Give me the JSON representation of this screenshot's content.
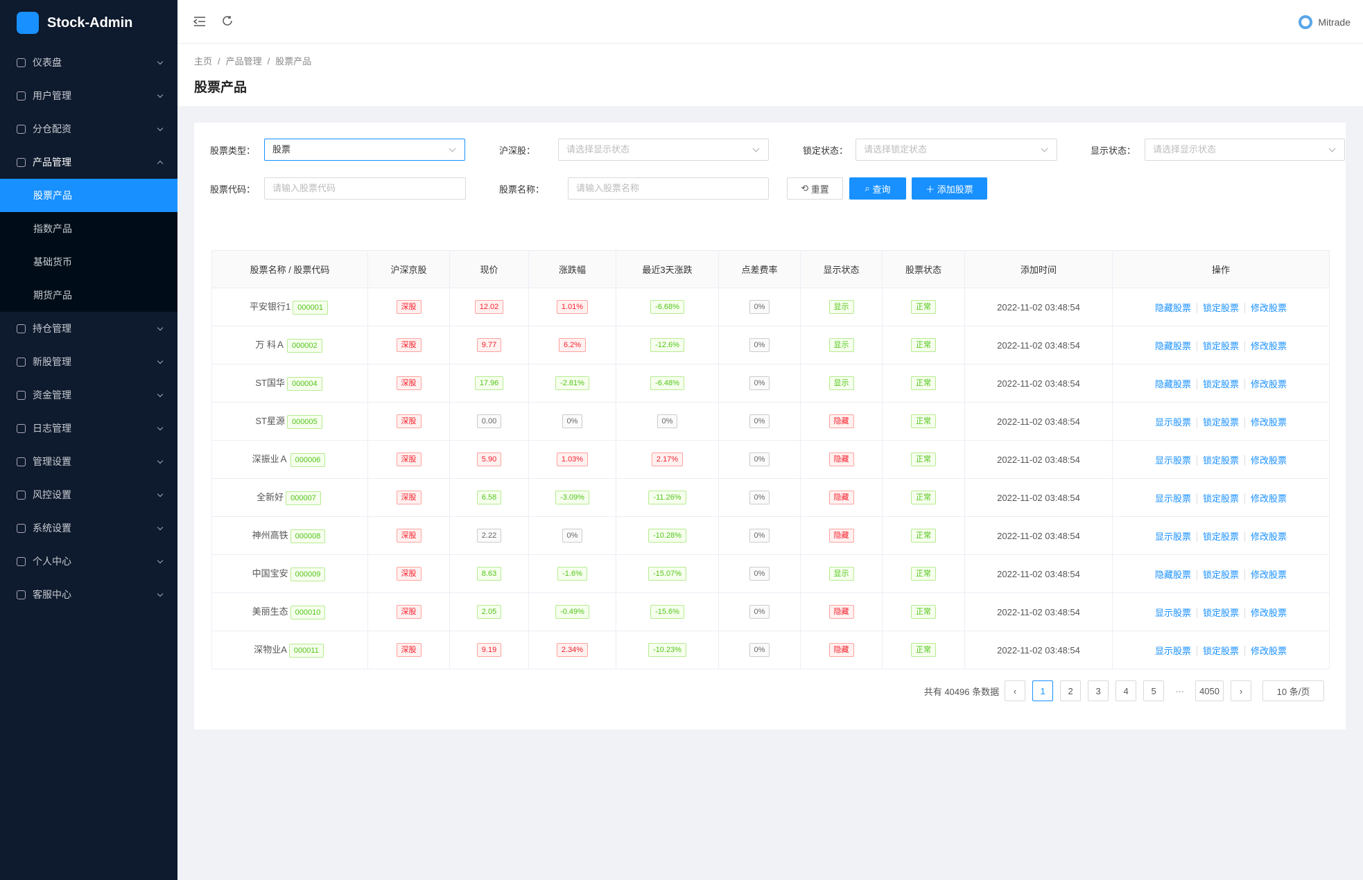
{
  "brand": "Stock-Admin",
  "user": "Mitrade",
  "menu": [
    {
      "label": "仪表盘"
    },
    {
      "label": "用户管理"
    },
    {
      "label": "分仓配资"
    },
    {
      "label": "产品管理",
      "open": true,
      "children": [
        {
          "label": "股票产品",
          "active": true
        },
        {
          "label": "指数产品"
        },
        {
          "label": "基础货币"
        },
        {
          "label": "期货产品"
        }
      ]
    },
    {
      "label": "持仓管理"
    },
    {
      "label": "新股管理"
    },
    {
      "label": "资金管理"
    },
    {
      "label": "日志管理"
    },
    {
      "label": "管理设置"
    },
    {
      "label": "风控设置"
    },
    {
      "label": "系统设置"
    },
    {
      "label": "个人中心"
    },
    {
      "label": "客服中心"
    }
  ],
  "breadcrumb": {
    "items": [
      "主页",
      "产品管理",
      "股票产品"
    ],
    "separator": "/"
  },
  "page_title": "股票产品",
  "filters": [
    {
      "label": "股票类型：",
      "value": "股票",
      "select": true
    },
    {
      "label": "沪深股：",
      "placeholder": "请选择显示状态",
      "select": true
    },
    {
      "label": "锁定状态：",
      "placeholder": "请选择锁定状态",
      "select": true
    },
    {
      "label": "显示状态：",
      "placeholder": "请选择显示状态",
      "select": true
    },
    {
      "label": "股票代码：",
      "placeholder": "请输入股票代码"
    },
    {
      "label": "股票名称：",
      "placeholder": "请输入股票名称"
    }
  ],
  "buttons": {
    "reset": "重置",
    "query": "查询",
    "add": "添加股票"
  },
  "table": {
    "columns": [
      "股票名称 / 股票代码",
      "沪深京股",
      "现价",
      "涨跌幅",
      "最近3天涨跌",
      "点差费率",
      "显示状态",
      "股票状态",
      "添加时间",
      "操作"
    ],
    "rows": [
      {
        "name": "平安银行1",
        "code": "000001",
        "market": "深股",
        "price": "12.02",
        "price_color": "red",
        "change": "1.01%",
        "change_color": "red",
        "change3": "-6.68%",
        "change3_color": "green",
        "spread": "0%",
        "display": "显示",
        "display_color": "green",
        "status": "正常",
        "time": "2022-11-02 03:48:54",
        "actions": [
          "隐藏股票",
          "锁定股票",
          "修改股票"
        ]
      },
      {
        "name": "万 科Ａ",
        "code": "000002",
        "market": "深股",
        "price": "9.77",
        "price_color": "red",
        "change": "6.2%",
        "change_color": "red",
        "change3": "-12.6%",
        "change3_color": "green",
        "spread": "0%",
        "display": "显示",
        "display_color": "green",
        "status": "正常",
        "time": "2022-11-02 03:48:54",
        "actions": [
          "隐藏股票",
          "锁定股票",
          "修改股票"
        ]
      },
      {
        "name": "ST国华",
        "code": "000004",
        "market": "深股",
        "price": "17.96",
        "price_color": "green",
        "change": "-2.81%",
        "change_color": "green",
        "change3": "-6.48%",
        "change3_color": "green",
        "spread": "0%",
        "display": "显示",
        "display_color": "green",
        "status": "正常",
        "time": "2022-11-02 03:48:54",
        "actions": [
          "隐藏股票",
          "锁定股票",
          "修改股票"
        ]
      },
      {
        "name": "ST星源",
        "code": "000005",
        "market": "深股",
        "price": "0.00",
        "price_color": "gray",
        "change": "0%",
        "change_color": "gray",
        "change3": "0%",
        "change3_color": "gray",
        "spread": "0%",
        "display": "隐藏",
        "display_color": "red",
        "status": "正常",
        "time": "2022-11-02 03:48:54",
        "actions": [
          "显示股票",
          "锁定股票",
          "修改股票"
        ]
      },
      {
        "name": "深振业Ａ",
        "code": "000006",
        "market": "深股",
        "price": "5.90",
        "price_color": "red",
        "change": "1.03%",
        "change_color": "red",
        "change3": "2.17%",
        "change3_color": "red",
        "spread": "0%",
        "display": "隐藏",
        "display_color": "red",
        "status": "正常",
        "time": "2022-11-02 03:48:54",
        "actions": [
          "显示股票",
          "锁定股票",
          "修改股票"
        ]
      },
      {
        "name": "全新好",
        "code": "000007",
        "market": "深股",
        "price": "6.58",
        "price_color": "green",
        "change": "-3.09%",
        "change_color": "green",
        "change3": "-11.26%",
        "change3_color": "green",
        "spread": "0%",
        "display": "隐藏",
        "display_color": "red",
        "status": "正常",
        "time": "2022-11-02 03:48:54",
        "actions": [
          "显示股票",
          "锁定股票",
          "修改股票"
        ]
      },
      {
        "name": "神州高铁",
        "code": "000008",
        "market": "深股",
        "price": "2.22",
        "price_color": "gray",
        "change": "0%",
        "change_color": "gray",
        "change3": "-10.28%",
        "change3_color": "green",
        "spread": "0%",
        "display": "隐藏",
        "display_color": "red",
        "status": "正常",
        "time": "2022-11-02 03:48:54",
        "actions": [
          "显示股票",
          "锁定股票",
          "修改股票"
        ]
      },
      {
        "name": "中国宝安",
        "code": "000009",
        "market": "深股",
        "price": "8.63",
        "price_color": "green",
        "change": "-1.6%",
        "change_color": "green",
        "change3": "-15.07%",
        "change3_color": "green",
        "spread": "0%",
        "display": "显示",
        "display_color": "green",
        "status": "正常",
        "time": "2022-11-02 03:48:54",
        "actions": [
          "隐藏股票",
          "锁定股票",
          "修改股票"
        ]
      },
      {
        "name": "美丽生态",
        "code": "000010",
        "market": "深股",
        "price": "2.05",
        "price_color": "green",
        "change": "-0.49%",
        "change_color": "green",
        "change3": "-15.6%",
        "change3_color": "green",
        "spread": "0%",
        "display": "隐藏",
        "display_color": "red",
        "status": "正常",
        "time": "2022-11-02 03:48:54",
        "actions": [
          "显示股票",
          "锁定股票",
          "修改股票"
        ]
      },
      {
        "name": "深物业A",
        "code": "000011",
        "market": "深股",
        "price": "9.19",
        "price_color": "red",
        "change": "2.34%",
        "change_color": "red",
        "change3": "-10.23%",
        "change3_color": "green",
        "spread": "0%",
        "display": "隐藏",
        "display_color": "red",
        "status": "正常",
        "time": "2022-11-02 03:48:54",
        "actions": [
          "显示股票",
          "锁定股票",
          "修改股票"
        ]
      }
    ]
  },
  "pagination": {
    "total_text": "共有 40496 条数据",
    "pages": [
      1,
      2,
      3,
      4,
      5
    ],
    "ellipsis": "···",
    "last_page": 4050,
    "current": 1,
    "page_size": "10 条/页"
  }
}
